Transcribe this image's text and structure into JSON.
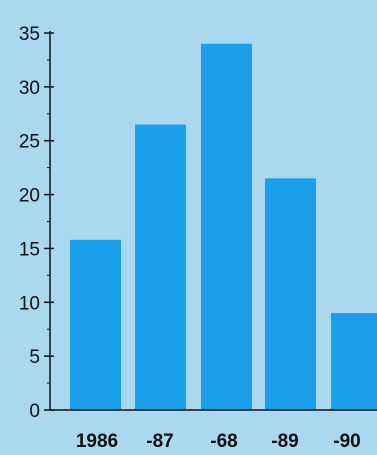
{
  "colors": {
    "plot_background": "#a9d8ef",
    "bar": "#1aa0ea",
    "axis": "#111111",
    "text": "#111111"
  },
  "chart_data": {
    "type": "bar",
    "categories": [
      "1986",
      "-87",
      "-68",
      "-89",
      "-90"
    ],
    "values": [
      15.8,
      26.5,
      34.0,
      21.5,
      9.0
    ],
    "title": "",
    "xlabel": "",
    "ylabel": "",
    "ylim": [
      0,
      35
    ],
    "yticks": [
      0,
      5,
      10,
      15,
      20,
      25,
      30,
      35
    ],
    "ytick_labels": [
      "0",
      "5",
      "10",
      "15",
      "20",
      "25",
      "30",
      "35"
    ],
    "grid": false,
    "legend": "none"
  }
}
